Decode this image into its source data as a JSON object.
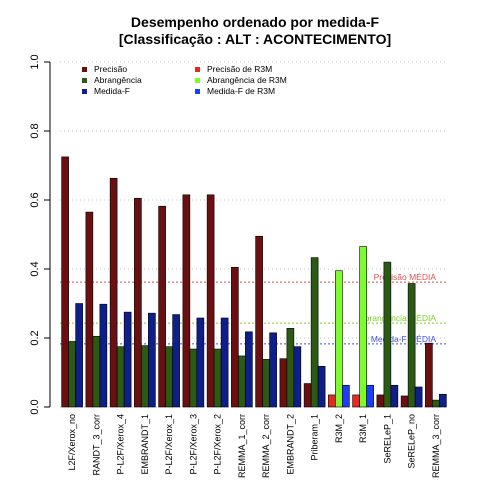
{
  "chart_data": {
    "type": "bar",
    "title_line1": "Desempenho ordenado por medida-F",
    "title_line2": "[Classificação : ALT : ACONTECIMENTO]",
    "ylim": [
      0,
      1
    ],
    "yticks": [
      "0.0",
      "0.2",
      "0.4",
      "0.6",
      "0.8",
      "1.0"
    ],
    "grid": "horizontal dotted",
    "categories": [
      "L2F/Xerox_no",
      "RANDT_3_corr",
      "P-L2F/Xerox_4",
      "EMBRANDT_1",
      "P-L2F/Xerox_1",
      "P-L2F/Xerox_3",
      "P-L2F/Xerox_2",
      "REMMA_1_corr",
      "REMMA_2_corr",
      "EMBRANDT_2",
      "Priberam_1",
      "R3M_2",
      "R3M_1",
      "SeRELeP_1",
      "SeRELeP_no",
      "REMMA_3_corr"
    ],
    "series": [
      {
        "name": "Precisão",
        "values": [
          0.725,
          0.565,
          0.663,
          0.605,
          0.582,
          0.615,
          0.615,
          0.405,
          0.495,
          0.14,
          0.068,
          0.035,
          0.035,
          0.035,
          0.032,
          0.185
        ]
      },
      {
        "name": "Abrangência",
        "values": [
          0.19,
          0.205,
          0.175,
          0.178,
          0.175,
          0.168,
          0.168,
          0.148,
          0.138,
          0.228,
          0.433,
          0.395,
          0.465,
          0.42,
          0.358,
          0.02
        ]
      },
      {
        "name": "Medida-F",
        "values": [
          0.3,
          0.298,
          0.275,
          0.272,
          0.268,
          0.258,
          0.258,
          0.218,
          0.215,
          0.175,
          0.118,
          0.063,
          0.063,
          0.063,
          0.058,
          0.037
        ]
      }
    ],
    "r3m_categories": [
      "R3M_2",
      "R3M_1"
    ],
    "r3m_colors": {
      "Precisão": "#e8281e",
      "Abrangência": "#7cfc2a",
      "Medida-F": "#1a3dff"
    },
    "colors": {
      "Precisão": "#6b1010",
      "Abrangência": "#2a5a14",
      "Medida-F": "#0e1e8a"
    },
    "legend": {
      "placement": "top-left",
      "entries": [
        "Precisão",
        "Abrangência",
        "Medida-F",
        "Precisão  de  R3M",
        "Abrangência  de  R3M",
        "Medida-F  de  R3M"
      ]
    },
    "reference_lines": [
      {
        "label": "Precisão MÉDIA",
        "value": 0.362,
        "color": "#e05050"
      },
      {
        "label": "Abrangência MÉDIA",
        "value": 0.243,
        "color": "#7cd020"
      },
      {
        "label": "Medida-F MÉDIA",
        "value": 0.183,
        "color": "#4050e0"
      }
    ]
  }
}
